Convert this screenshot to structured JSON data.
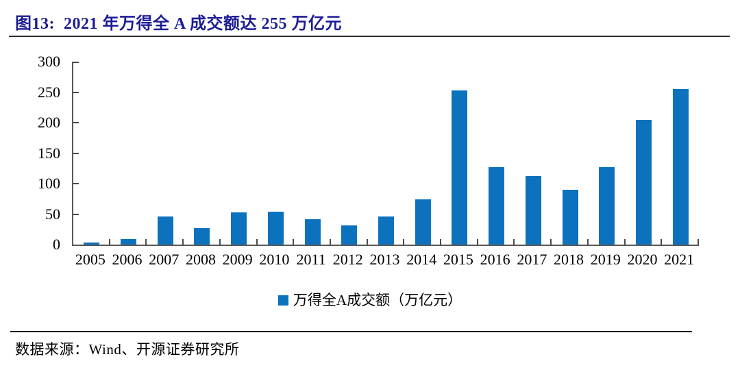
{
  "title": {
    "text": "图13:  2021 年万得全 A 成交额达 255 万亿元"
  },
  "source": {
    "text": "数据来源：Wind、开源证券研究所"
  },
  "colors": {
    "bar": "#0d72bd",
    "title": "#1c1c96",
    "axis": "#595959",
    "tick": "#4a4a4a"
  },
  "chart_data": {
    "type": "bar",
    "title": "图13:  2021 年万得全 A 成交额达 255 万亿元",
    "categories": [
      "2005",
      "2006",
      "2007",
      "2008",
      "2009",
      "2010",
      "2011",
      "2012",
      "2013",
      "2014",
      "2015",
      "2016",
      "2017",
      "2018",
      "2019",
      "2020",
      "2021"
    ],
    "values": [
      3,
      9,
      46,
      27,
      53,
      54,
      42,
      31,
      46,
      74,
      253,
      127,
      112,
      90,
      127,
      204,
      255
    ],
    "legend": "万得全A成交额（万亿元）",
    "legend_position": "bottom-center",
    "xlabel": "",
    "ylabel": "",
    "ylim": [
      0,
      300
    ],
    "yticks": [
      0,
      50,
      100,
      150,
      200,
      250,
      300
    ],
    "grid": false
  }
}
